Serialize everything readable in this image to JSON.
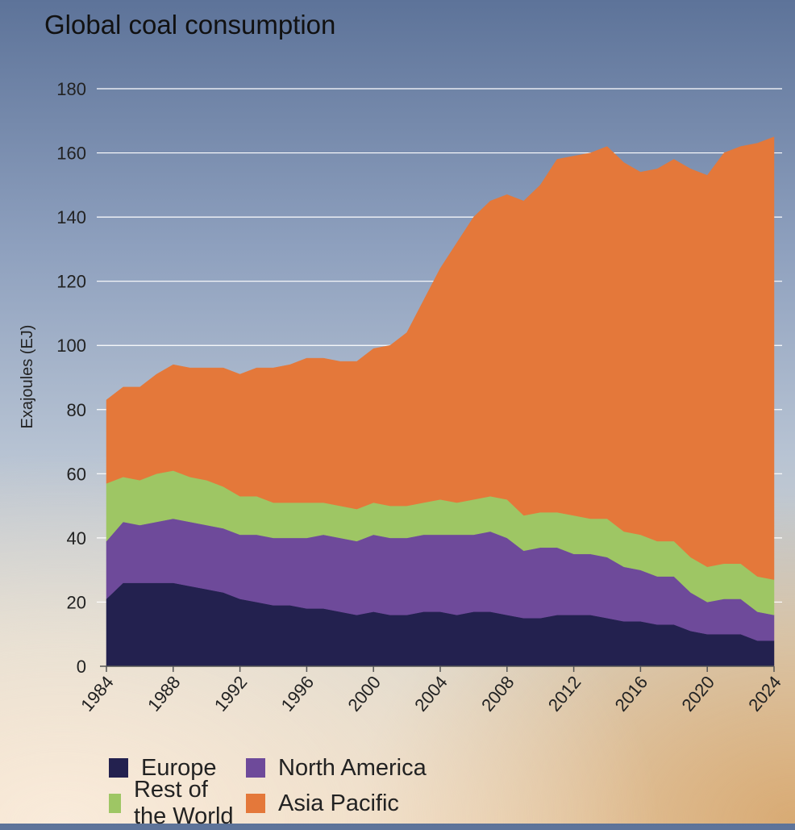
{
  "chart_data": {
    "type": "area",
    "stacked": true,
    "title": "Global coal consumption",
    "ylabel": "Exajoules (EJ)",
    "xlabel": "",
    "ylim": [
      0,
      180
    ],
    "yticks": [
      0,
      20,
      40,
      60,
      80,
      100,
      120,
      140,
      160,
      180
    ],
    "xlim": [
      1984,
      2024
    ],
    "xticks": [
      1984,
      1988,
      1992,
      1996,
      2000,
      2004,
      2008,
      2012,
      2016,
      2020,
      2024
    ],
    "grid": true,
    "legend_position": "bottom",
    "x": [
      1984,
      1985,
      1986,
      1987,
      1988,
      1989,
      1990,
      1991,
      1992,
      1993,
      1994,
      1995,
      1996,
      1997,
      1998,
      1999,
      2000,
      2001,
      2002,
      2003,
      2004,
      2005,
      2006,
      2007,
      2008,
      2009,
      2010,
      2011,
      2012,
      2013,
      2014,
      2015,
      2016,
      2017,
      2018,
      2019,
      2020,
      2021,
      2022,
      2023,
      2024
    ],
    "series": [
      {
        "name": "Europe",
        "color": "#23214f",
        "values": [
          21,
          26,
          26,
          26,
          26,
          25,
          24,
          23,
          21,
          20,
          19,
          19,
          18,
          18,
          17,
          16,
          17,
          16,
          16,
          17,
          17,
          16,
          17,
          17,
          16,
          15,
          15,
          16,
          16,
          16,
          15,
          14,
          14,
          13,
          13,
          11,
          10,
          10,
          10,
          8,
          8
        ]
      },
      {
        "name": "North America",
        "color": "#6e4a9a",
        "values": [
          18,
          19,
          18,
          19,
          20,
          20,
          20,
          20,
          20,
          21,
          21,
          21,
          22,
          23,
          23,
          23,
          24,
          24,
          24,
          24,
          24,
          25,
          24,
          25,
          24,
          21,
          22,
          21,
          19,
          19,
          19,
          17,
          16,
          15,
          15,
          12,
          10,
          11,
          11,
          9,
          8
        ]
      },
      {
        "name": "Rest of the World",
        "color": "#9ec664",
        "values": [
          18,
          14,
          14,
          15,
          15,
          14,
          14,
          13,
          12,
          12,
          11,
          11,
          11,
          10,
          10,
          10,
          10,
          10,
          10,
          10,
          11,
          10,
          11,
          11,
          12,
          11,
          11,
          11,
          12,
          11,
          12,
          11,
          11,
          11,
          11,
          11,
          11,
          11,
          11,
          11,
          11
        ]
      },
      {
        "name": "Asia Pacific",
        "color": "#e4783a",
        "values": [
          26,
          28,
          29,
          31,
          33,
          34,
          35,
          37,
          38,
          40,
          42,
          43,
          45,
          45,
          45,
          46,
          48,
          50,
          54,
          63,
          72,
          81,
          88,
          92,
          95,
          98,
          102,
          110,
          112,
          114,
          116,
          115,
          113,
          116,
          119,
          121,
          122,
          128,
          130,
          135,
          138
        ]
      }
    ]
  }
}
